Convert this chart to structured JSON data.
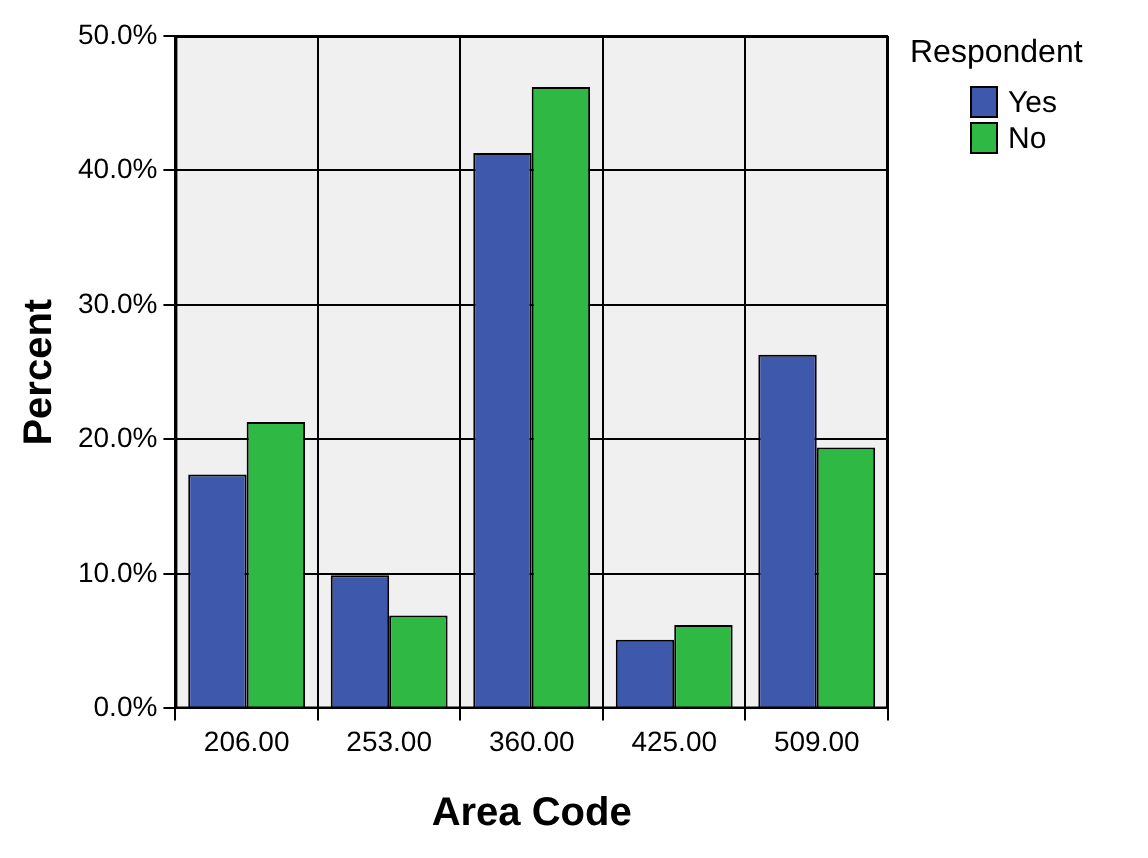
{
  "chart_data": {
    "type": "bar",
    "xlabel": "Area Code",
    "ylabel": "Percent",
    "legend_title": "Respondent",
    "categories": [
      "206.00",
      "253.00",
      "360.00",
      "425.00",
      "509.00"
    ],
    "series": [
      {
        "name": "Yes",
        "color": "#3e58ac",
        "values": [
          17.4,
          9.9,
          41.3,
          5.1,
          26.3
        ]
      },
      {
        "name": "No",
        "color": "#2fb844",
        "values": [
          21.3,
          6.9,
          46.2,
          6.2,
          19.4
        ]
      }
    ],
    "ylim": [
      0,
      50
    ],
    "yticks": [
      {
        "value": 0,
        "label": "0.0%"
      },
      {
        "value": 10,
        "label": "10.0%"
      },
      {
        "value": 20,
        "label": "20.0%"
      },
      {
        "value": 30,
        "label": "30.0%"
      },
      {
        "value": 40,
        "label": "40.0%"
      },
      {
        "value": 50,
        "label": "50.0%"
      }
    ],
    "grid": true,
    "legend": "top right"
  }
}
